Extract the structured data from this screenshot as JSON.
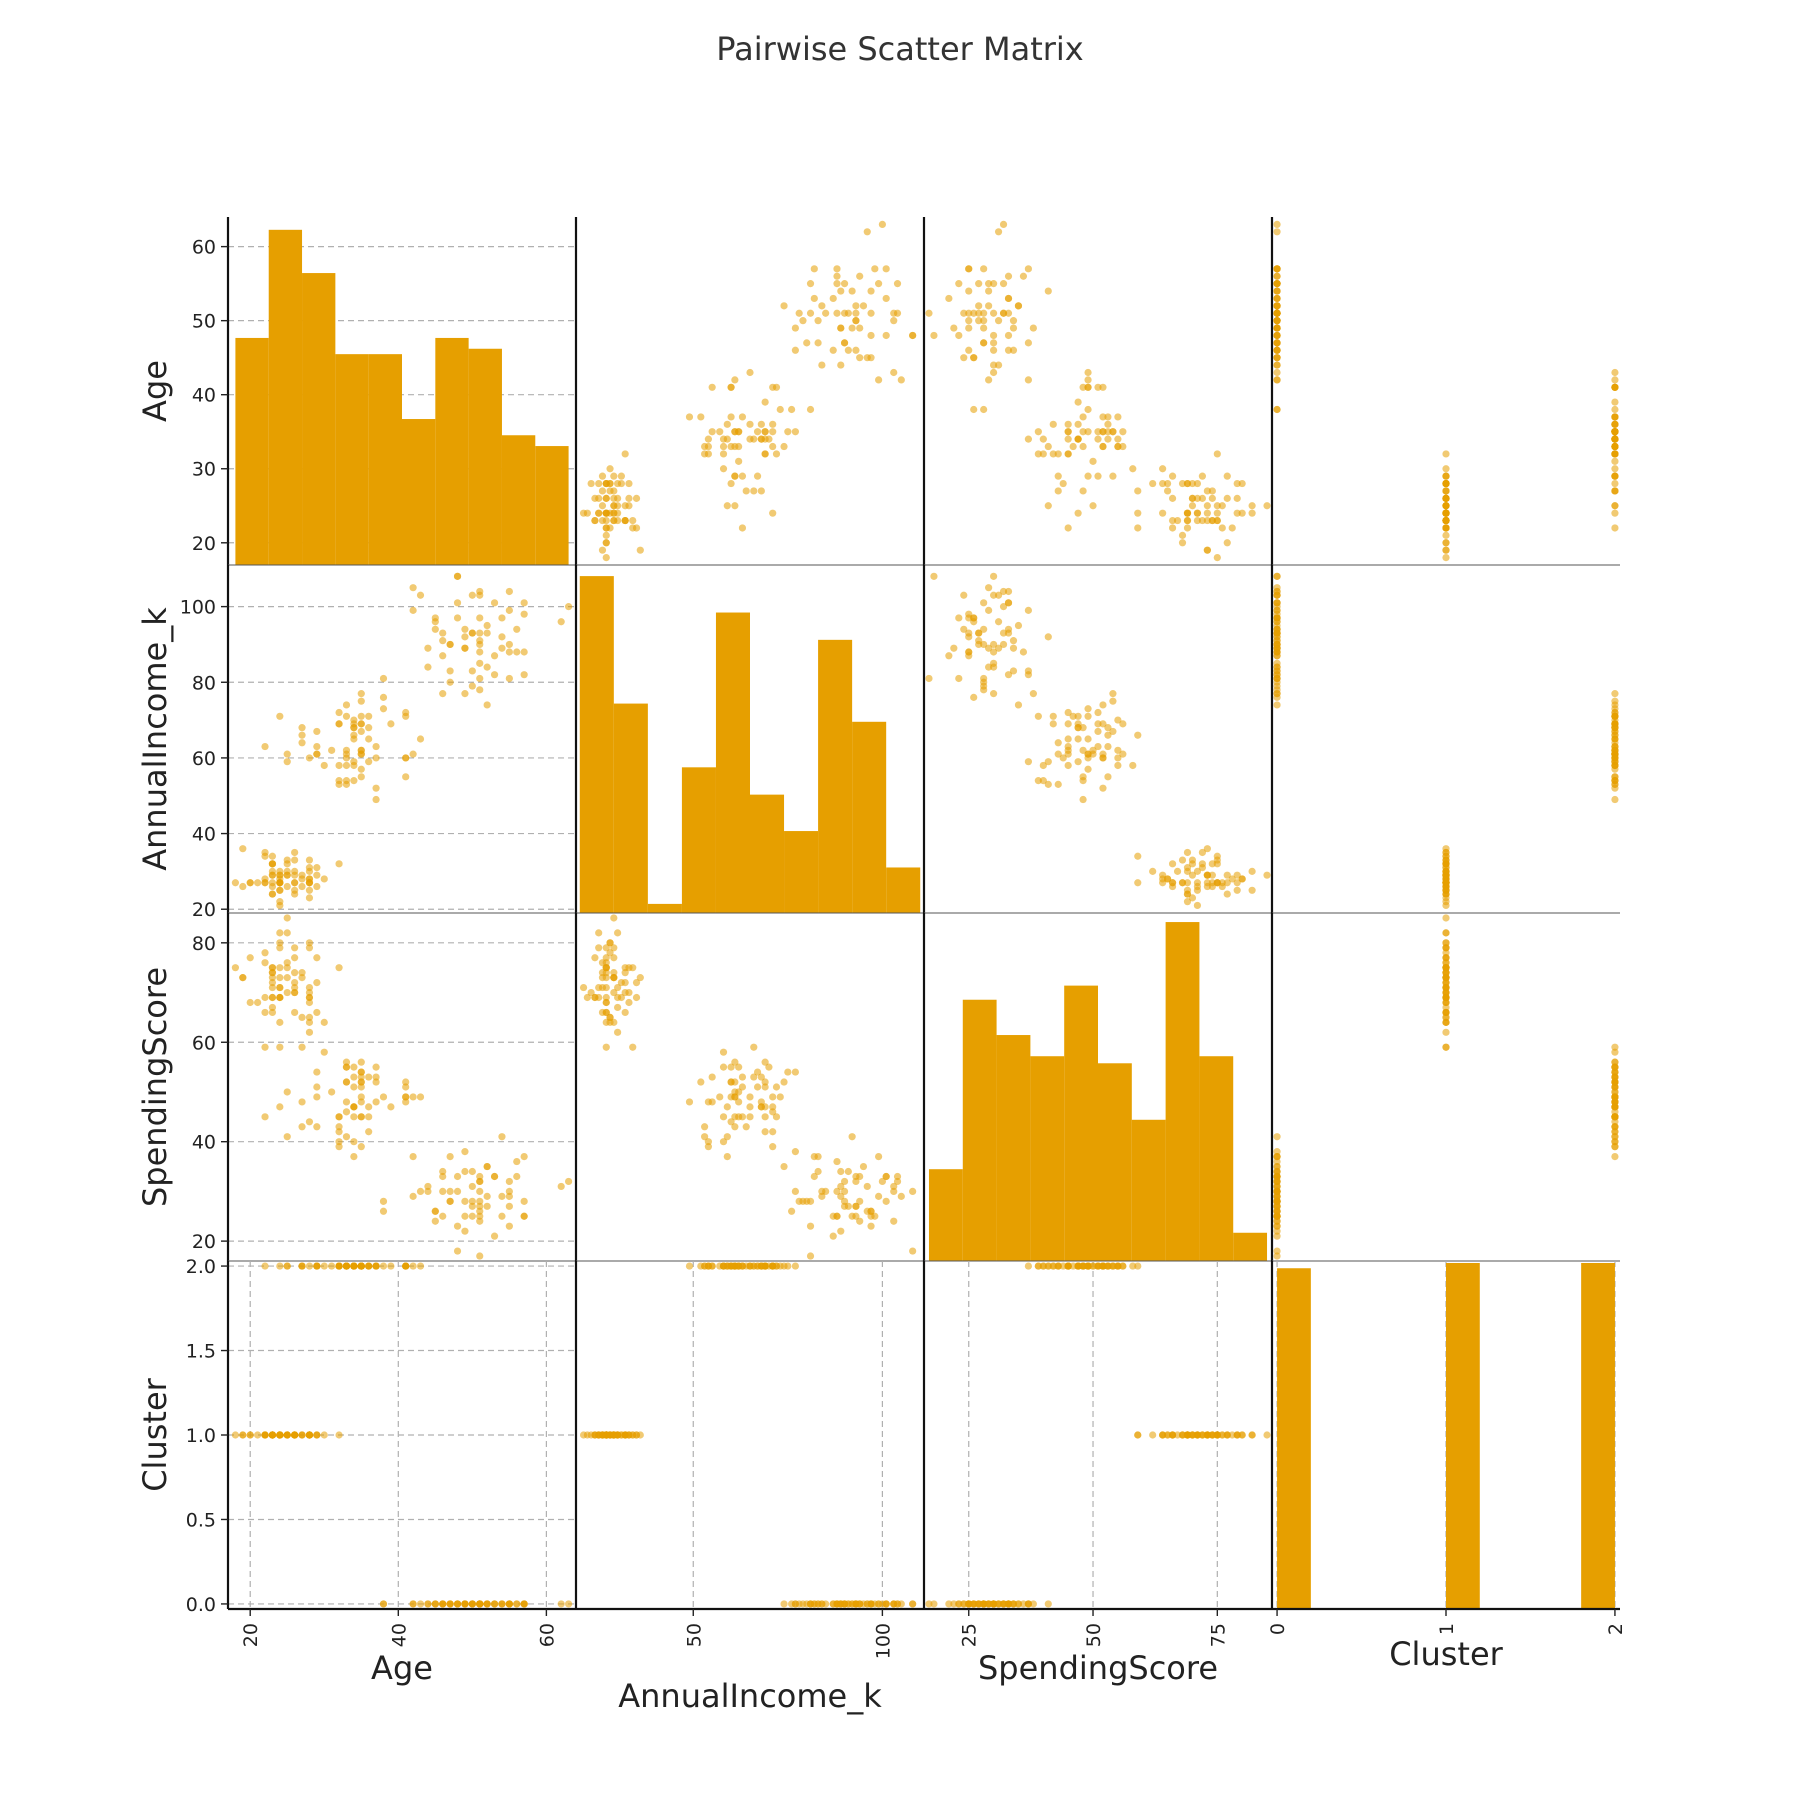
{
  "chart_data": {
    "type": "scatter-matrix",
    "title": "Pairwise Scatter Matrix",
    "color": "#E69F00",
    "variables": [
      "Age",
      "AnnualIncome_k",
      "SpendingScore",
      "Cluster"
    ],
    "ranges": {
      "Age": [
        17,
        64
      ],
      "AnnualIncome_k": [
        19,
        111
      ],
      "SpendingScore": [
        16,
        86
      ],
      "Cluster": [
        -0.03,
        2.03
      ]
    },
    "ticks": {
      "Age": [
        20,
        30,
        40,
        50,
        60
      ],
      "AgeBottom": [
        20,
        40,
        60
      ],
      "AnnualIncome_k": [
        20,
        40,
        60,
        80,
        100
      ],
      "AnnualIncome_kBottom": [
        50,
        100
      ],
      "SpendingScore": [
        20,
        40,
        60,
        80
      ],
      "SpendingScoreBottom": [
        25,
        50,
        75
      ],
      "Cluster": [
        0.0,
        0.5,
        1.0,
        1.5,
        2.0
      ],
      "ClusterBottom": [
        0,
        1,
        2
      ]
    },
    "tick_labels": {
      "Age": [
        "20",
        "30",
        "40",
        "50",
        "60"
      ],
      "AgeBottom": [
        "20",
        "40",
        "60"
      ],
      "AnnualIncome_k": [
        "20",
        "40",
        "60",
        "80",
        "100"
      ],
      "AnnualIncome_kBottom": [
        "50",
        "100"
      ],
      "SpendingScore": [
        "20",
        "40",
        "60",
        "80"
      ],
      "SpendingScoreBottom": [
        "25",
        "50",
        "75"
      ],
      "Cluster": [
        "0.0",
        "0.5",
        "1.0",
        "1.5",
        "2.0"
      ],
      "ClusterBottom": [
        "0",
        "1",
        "2"
      ]
    },
    "histograms": {
      "Age": {
        "edges": [
          18,
          22.5,
          27,
          31.5,
          36,
          40.5,
          45,
          49.5,
          54,
          58.5,
          63
        ],
        "counts": [
          42,
          62,
          54,
          39,
          39,
          27,
          42,
          40,
          24,
          22
        ],
        "max": 64
      },
      "AnnualIncome_k": {
        "edges": [
          20,
          29,
          38,
          47,
          56,
          65,
          74,
          83,
          92,
          101,
          110
        ],
        "counts": [
          37,
          23,
          1,
          16,
          33,
          13,
          9,
          30,
          21,
          5
        ],
        "max": 38
      },
      "SpendingScore": {
        "edges": [
          17,
          23.8,
          30.6,
          37.4,
          44.2,
          51,
          57.8,
          64.6,
          71.4,
          78.2,
          85
        ],
        "counts": [
          13,
          37,
          32,
          29,
          39,
          28,
          20,
          48,
          29,
          4
        ],
        "max": 49
      },
      "Cluster": {
        "edges": [
          0,
          0.2,
          0.4,
          0.6,
          0.8,
          1.0,
          1.2,
          1.4,
          1.6,
          1.8,
          2.0
        ],
        "counts": [
          65,
          0,
          0,
          0,
          0,
          66,
          0,
          0,
          0,
          66
        ],
        "max": 66
      }
    },
    "clusters": [
      {
        "label": 1,
        "n": 66,
        "Age": [
          18,
          32
        ],
        "AnnualIncome_k": [
          20,
          37
        ],
        "SpendingScore": [
          59,
          86
        ]
      },
      {
        "label": 2,
        "n": 66,
        "Age": [
          22,
          45
        ],
        "AnnualIncome_k": [
          46,
          80
        ],
        "SpendingScore": [
          36,
          62
        ]
      },
      {
        "label": 0,
        "n": 65,
        "Age": [
          38,
          63
        ],
        "AnnualIncome_k": [
          70,
          110
        ],
        "SpendingScore": [
          17,
          42
        ]
      }
    ]
  }
}
